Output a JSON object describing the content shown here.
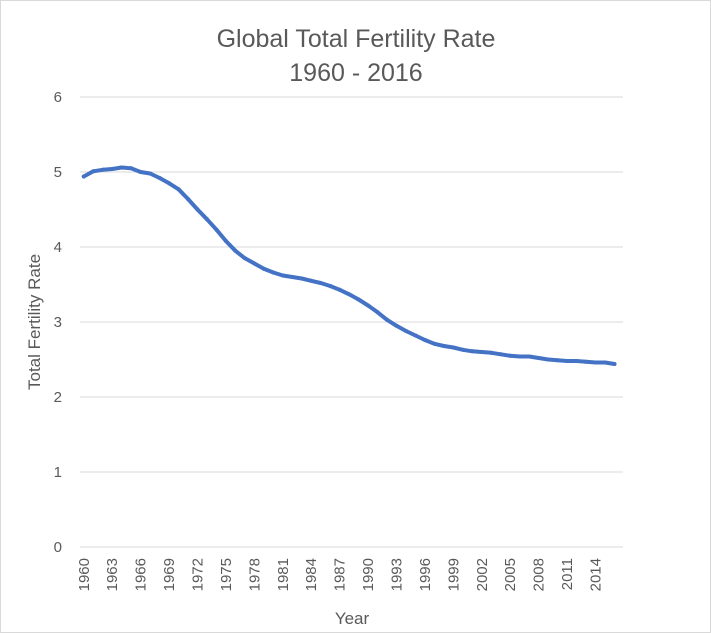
{
  "chart_data": {
    "type": "line",
    "title": "Global Total Fertility Rate",
    "subtitle": "1960 - 2016",
    "xlabel": "Year",
    "ylabel": "Total Fertility Rate",
    "ylim": [
      0,
      6
    ],
    "yticks": [
      0,
      1,
      2,
      3,
      4,
      5,
      6
    ],
    "xtick_labels": [
      "1960",
      "1963",
      "1966",
      "1969",
      "1972",
      "1975",
      "1978",
      "1981",
      "1984",
      "1987",
      "1990",
      "1993",
      "1996",
      "1999",
      "2002",
      "2005",
      "2008",
      "2011",
      "2014"
    ],
    "grid": true,
    "legend": "none",
    "colors": {
      "line": "#4472c4",
      "grid": "#d9d9d9",
      "text": "#595959"
    },
    "x": [
      1960,
      1961,
      1962,
      1963,
      1964,
      1965,
      1966,
      1967,
      1968,
      1969,
      1970,
      1971,
      1972,
      1973,
      1974,
      1975,
      1976,
      1977,
      1978,
      1979,
      1980,
      1981,
      1982,
      1983,
      1984,
      1985,
      1986,
      1987,
      1988,
      1989,
      1990,
      1991,
      1992,
      1993,
      1994,
      1995,
      1996,
      1997,
      1998,
      1999,
      2000,
      2001,
      2002,
      2003,
      2004,
      2005,
      2006,
      2007,
      2008,
      2009,
      2010,
      2011,
      2012,
      2013,
      2014,
      2015,
      2016
    ],
    "series": [
      {
        "name": "Total Fertility Rate",
        "values": [
          4.94,
          5.01,
          5.03,
          5.04,
          5.06,
          5.05,
          5.0,
          4.98,
          4.92,
          4.85,
          4.77,
          4.64,
          4.5,
          4.37,
          4.23,
          4.08,
          3.95,
          3.85,
          3.78,
          3.71,
          3.66,
          3.62,
          3.6,
          3.58,
          3.55,
          3.52,
          3.48,
          3.43,
          3.37,
          3.3,
          3.22,
          3.13,
          3.03,
          2.95,
          2.88,
          2.82,
          2.76,
          2.71,
          2.68,
          2.66,
          2.63,
          2.61,
          2.6,
          2.59,
          2.57,
          2.55,
          2.54,
          2.54,
          2.52,
          2.5,
          2.49,
          2.48,
          2.48,
          2.47,
          2.46,
          2.46,
          2.44
        ]
      }
    ]
  }
}
